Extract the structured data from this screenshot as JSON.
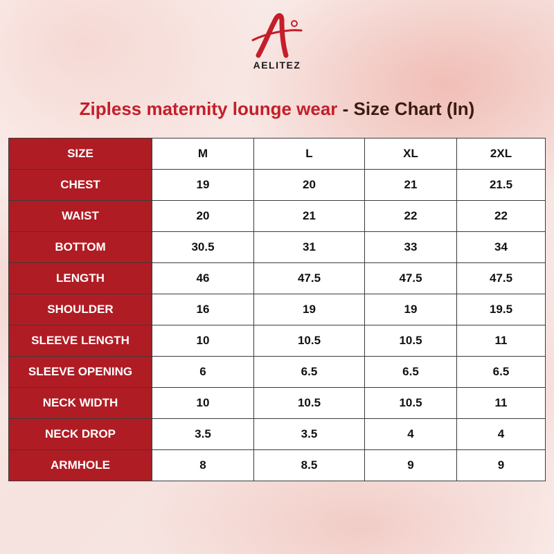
{
  "brand": {
    "name": "AELITEZ",
    "colors": {
      "red": "#c41e2a",
      "label_bg": "#b01c24",
      "dark": "#3a1c12"
    }
  },
  "title": {
    "product": "Zipless maternity lounge wear",
    "separator": " - ",
    "suffix": "Size Chart (In)"
  },
  "table": {
    "header": {
      "label": "SIZE",
      "sizes": [
        "M",
        "L",
        "XL",
        "2XL"
      ]
    },
    "rows": [
      {
        "label": "CHEST",
        "values": [
          "19",
          "20",
          "21",
          "21.5"
        ]
      },
      {
        "label": "WAIST",
        "values": [
          "20",
          "21",
          "22",
          "22"
        ]
      },
      {
        "label": "BOTTOM",
        "values": [
          "30.5",
          "31",
          "33",
          "34"
        ]
      },
      {
        "label": "LENGTH",
        "values": [
          "46",
          "47.5",
          "47.5",
          "47.5"
        ]
      },
      {
        "label": "SHOULDER",
        "values": [
          "16",
          "19",
          "19",
          "19.5"
        ]
      },
      {
        "label": "SLEEVE LENGTH",
        "values": [
          "10",
          "10.5",
          "10.5",
          "11"
        ]
      },
      {
        "label": "SLEEVE OPENING",
        "values": [
          "6",
          "6.5",
          "6.5",
          "6.5"
        ]
      },
      {
        "label": "NECK WIDTH",
        "values": [
          "10",
          "10.5",
          "10.5",
          "11"
        ]
      },
      {
        "label": "NECK DROP",
        "values": [
          "3.5",
          "3.5",
          "4",
          "4"
        ]
      },
      {
        "label": "ARMHOLE",
        "values": [
          "8",
          "8.5",
          "9",
          "9"
        ]
      }
    ]
  }
}
